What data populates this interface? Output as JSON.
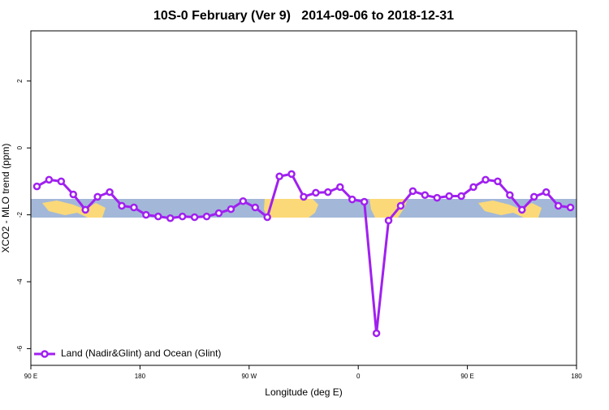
{
  "chart_data": {
    "type": "line",
    "title": "10S-0 February (Ver 9)   2014-09-06 to 2018-12-31",
    "xlabel": "Longitude (deg E)",
    "ylabel": "XCO2 - MLO trend (ppm)",
    "x": [
      95,
      105,
      115,
      125,
      135,
      145,
      155,
      165,
      175,
      185,
      195,
      205,
      215,
      225,
      235,
      245,
      255,
      265,
      275,
      285,
      295,
      305,
      315,
      325,
      335,
      345,
      355,
      365,
      375,
      385,
      395,
      405,
      415,
      425,
      435,
      445,
      455,
      465,
      475,
      485,
      495,
      505,
      515,
      525,
      535
    ],
    "series": [
      {
        "name": "Land (Nadir&Glint) and Ocean (Glint)",
        "color": "#a020f0",
        "values": [
          -1.15,
          -0.95,
          -1.0,
          -1.39,
          -1.85,
          -1.46,
          -1.32,
          -1.73,
          -1.78,
          -2.0,
          -2.05,
          -2.1,
          -2.05,
          -2.07,
          -2.05,
          -1.95,
          -1.83,
          -1.59,
          -1.78,
          -2.07,
          -0.85,
          -0.78,
          -1.46,
          -1.34,
          -1.32,
          -1.17,
          -1.54,
          -1.61,
          -5.54,
          -2.17,
          -1.73,
          -1.29,
          -1.41,
          -1.49,
          -1.44,
          -1.44,
          -1.17,
          -0.95,
          -1.0,
          -1.41,
          -1.85,
          -1.46,
          -1.32,
          -1.73,
          -1.78
        ]
      }
    ],
    "xlim": [
      90,
      540
    ],
    "xticks": [
      {
        "value": 90,
        "label": "90 E"
      },
      180,
      {
        "value": 270,
        "label": "90 W"
      },
      {
        "value": 360,
        "label": "0"
      },
      {
        "value": 450,
        "label": "90 E"
      },
      {
        "value": 540,
        "label": "180"
      }
    ],
    "ylim": [
      -6.5,
      3.5
    ],
    "yticks": [
      2,
      0,
      -2,
      -4,
      -6
    ],
    "legend": "bottom-left"
  }
}
